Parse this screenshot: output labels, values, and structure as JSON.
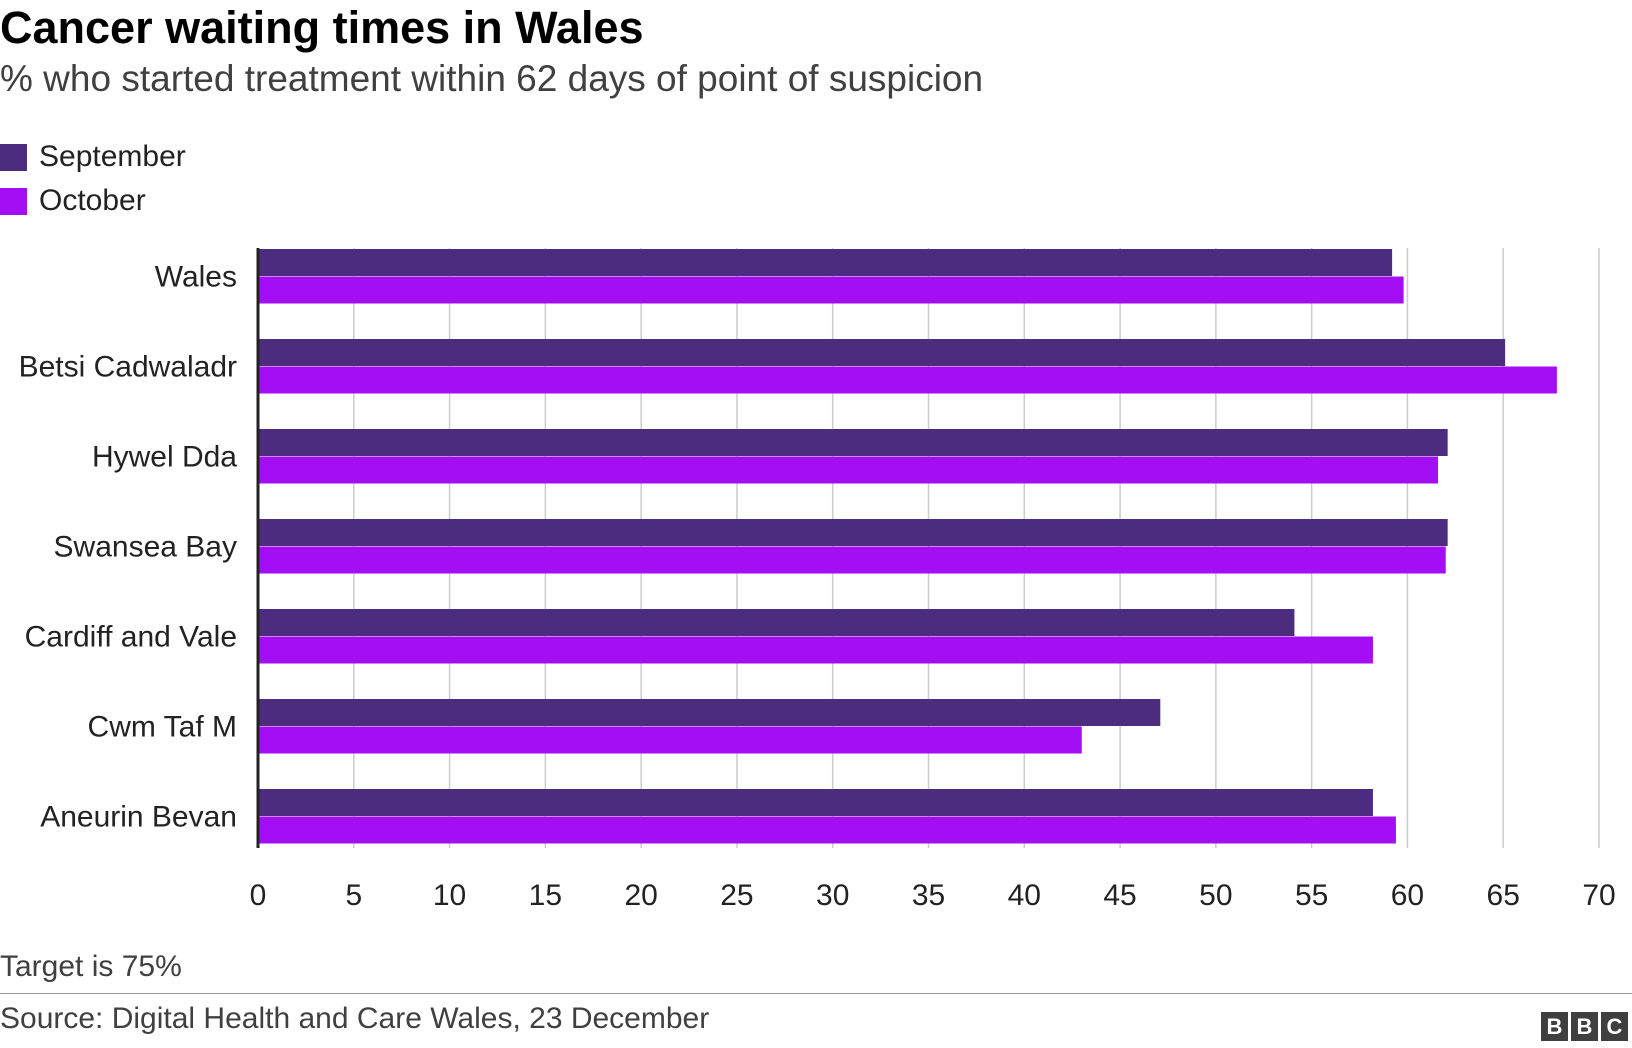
{
  "header": {
    "title": "Cancer waiting times in Wales",
    "subtitle": "% who started treatment within 62 days of point of suspicion"
  },
  "legend": [
    {
      "label": "September",
      "color": "#4b2c7e"
    },
    {
      "label": "October",
      "color": "#a40ef5"
    }
  ],
  "footer": {
    "note": "Target is 75%",
    "source": "Source: Digital Health and Care Wales, 23 December",
    "logo": [
      "B",
      "B",
      "C"
    ]
  },
  "chart_data": {
    "type": "bar",
    "orientation": "horizontal",
    "title": "Cancer waiting times in Wales",
    "subtitle": "% who started treatment within 62 days of point of suspicion",
    "categories": [
      "Wales",
      "Betsi Cadwaladr",
      "Hywel Dda",
      "Swansea Bay",
      "Cardiff and Vale",
      "Cwm Taf M",
      "Aneurin Bevan"
    ],
    "series": [
      {
        "name": "September",
        "color": "#4b2c7e",
        "values": [
          59.2,
          65.1,
          62.1,
          62.1,
          54.1,
          47.1,
          58.2
        ]
      },
      {
        "name": "October",
        "color": "#a40ef5",
        "values": [
          59.8,
          67.8,
          61.6,
          62.0,
          58.2,
          43.0,
          59.4
        ]
      }
    ],
    "xlim": [
      0,
      70
    ],
    "xticks": [
      0,
      5,
      10,
      15,
      20,
      25,
      30,
      35,
      40,
      45,
      50,
      55,
      60,
      65,
      70
    ],
    "grid": true,
    "legend_position": "top-left"
  }
}
